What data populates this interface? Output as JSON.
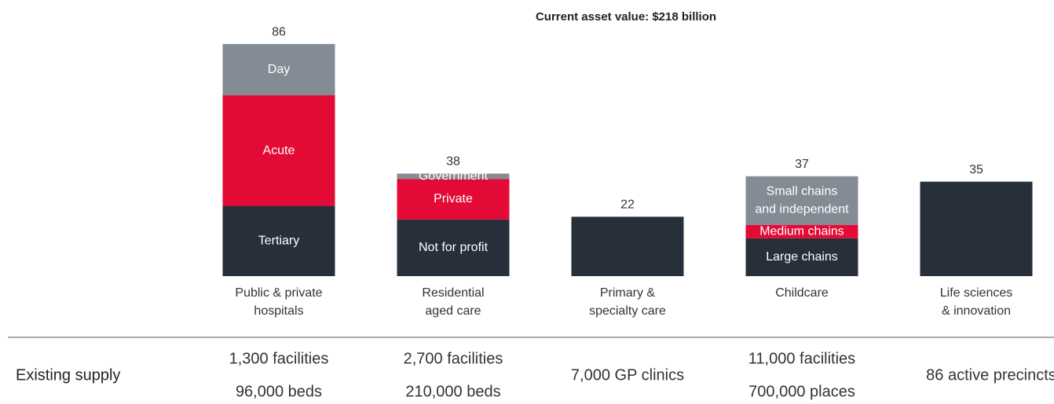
{
  "chart_data": {
    "type": "stacked_bar",
    "title": "Current asset value: $218 billion",
    "categories": [
      [
        "Public & private",
        "hospitals"
      ],
      [
        "Residential",
        "aged care"
      ],
      [
        "Primary &",
        "specialty care"
      ],
      [
        "Childcare"
      ],
      [
        "Life sciences",
        "& innovation"
      ]
    ],
    "totals": [
      86,
      38,
      22,
      37,
      35
    ],
    "stacks": [
      [
        {
          "name": [
            "Tertiary"
          ],
          "value": 26,
          "color": "#262f3a"
        },
        {
          "name": [
            "Acute"
          ],
          "value": 41,
          "color": "#e30a35"
        },
        {
          "name": [
            "Day"
          ],
          "value": 19,
          "color": "#858b94"
        }
      ],
      [
        {
          "name": [
            "Not for profit"
          ],
          "value": 21,
          "color": "#262f3a"
        },
        {
          "name": [
            "Private"
          ],
          "value": 15,
          "color": "#e30a35"
        },
        {
          "name": [
            "Government"
          ],
          "value": 2,
          "color": "#858b94"
        }
      ],
      [
        {
          "value": 22,
          "color": "#262f3a"
        }
      ],
      [
        {
          "name": [
            "Large chains"
          ],
          "value": 14,
          "color": "#262f3a"
        },
        {
          "name": [
            "Medium chains"
          ],
          "value": 5,
          "color": "#e30a35"
        },
        {
          "name": [
            "Small chains",
            "and independent"
          ],
          "value": 18,
          "color": "#858b94"
        }
      ],
      [
        {
          "value": 35,
          "color": "#262f3a"
        }
      ]
    ]
  },
  "supply": {
    "label": "Existing supply",
    "cells": [
      [
        "1,300 facilities",
        "96,000 beds"
      ],
      [
        "2,700 facilities",
        "210,000 beds"
      ],
      [
        "7,000 GP clinics"
      ],
      [
        "11,000 facilities",
        "700,000 places"
      ],
      [
        "86 active precincts"
      ]
    ]
  }
}
